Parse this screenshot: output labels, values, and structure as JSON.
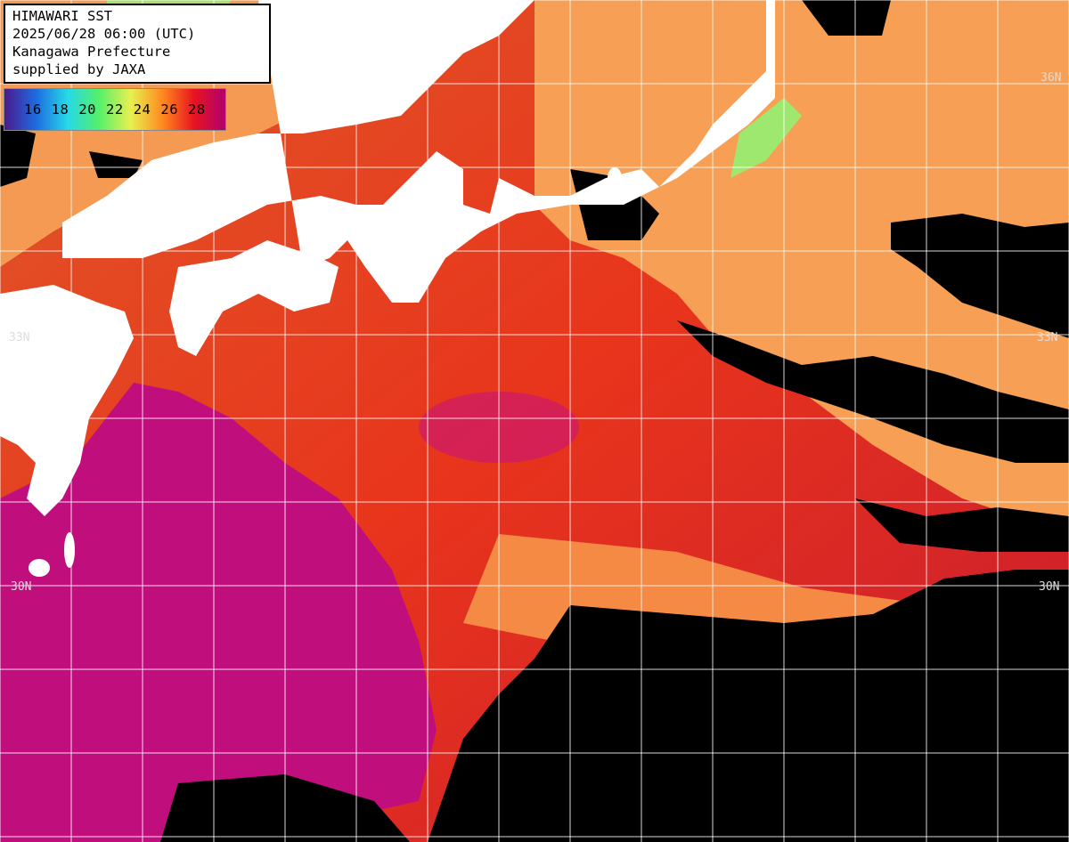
{
  "info": {
    "line1": "HIMAWARI SST",
    "line2": "2025/06/28 06:00 (UTC)",
    "line3": "Kanagawa Prefecture",
    "line4": "supplied by JAXA"
  },
  "legend": {
    "labels": [
      "16",
      "18",
      "20",
      "22",
      "24",
      "26",
      "28"
    ],
    "colors": [
      "#4a1a8c",
      "#1e6be0",
      "#26d9e8",
      "#55f06a",
      "#e8f050",
      "#ff8a20",
      "#e81420",
      "#b0006e"
    ]
  },
  "latitudes": {
    "lat_36": "36N",
    "lat_33": "33N",
    "lat_30": "30N"
  },
  "palette": {
    "cloud": "#000000",
    "land": "#ffffff",
    "grid": "#ffffff",
    "warm": "#e8301c",
    "warmest": "#c0107a",
    "mild": "#f7a055",
    "cool": "#9ee870"
  }
}
